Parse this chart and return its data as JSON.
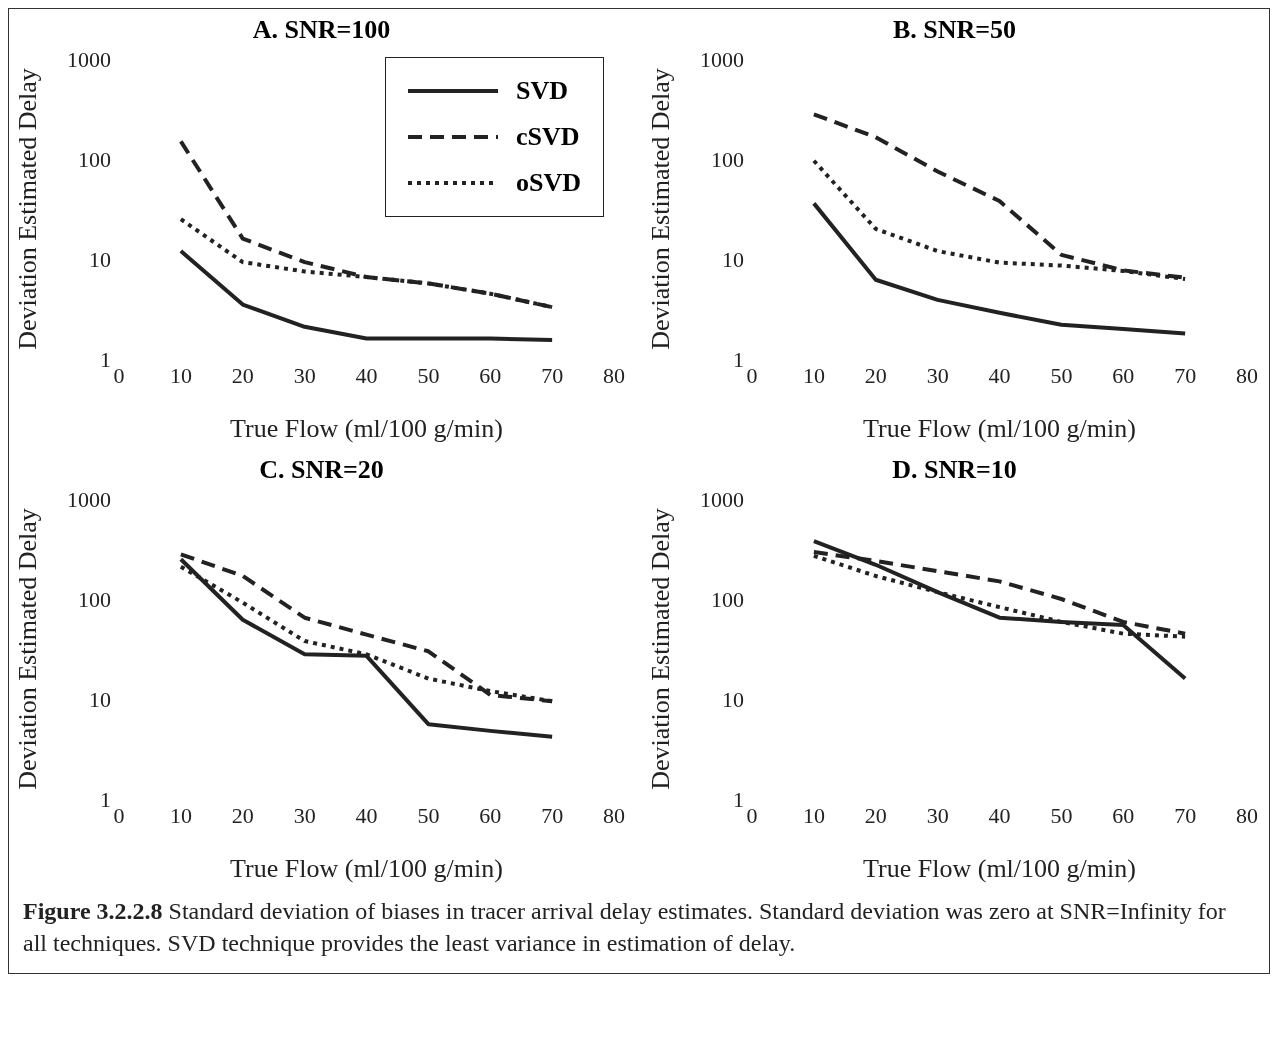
{
  "chart_data": [
    {
      "type": "line",
      "title": "A. SNR=100",
      "xlabel": "True Flow (ml/100 g/min)",
      "ylabel": "Deviation Estimated Delay",
      "x": [
        10,
        20,
        30,
        40,
        50,
        60,
        70
      ],
      "xlim": [
        0,
        80
      ],
      "xticks": [
        0,
        10,
        20,
        30,
        40,
        50,
        60,
        70,
        80
      ],
      "ylim": [
        1,
        1000
      ],
      "yticks": [
        1,
        10,
        100,
        1000
      ],
      "log": "y",
      "grid": false,
      "legend": "top right",
      "series": [
        {
          "name": "SVD",
          "color": "#222222",
          "line_style": "solid",
          "values": [
            12,
            3.5,
            2.1,
            1.6,
            1.6,
            1.6,
            1.55
          ]
        },
        {
          "name": "cSVD",
          "color": "#222222",
          "line_style": "dashed",
          "values": [
            150,
            16,
            9.3,
            6.6,
            5.7,
            4.5,
            3.3
          ]
        },
        {
          "name": "oSVD",
          "color": "#222222",
          "line_style": "dotted",
          "values": [
            25,
            9.3,
            7.5,
            6.6,
            5.7,
            4.5,
            3.3
          ]
        }
      ]
    },
    {
      "type": "line",
      "title": "B. SNR=50",
      "xlabel": "True Flow (ml/100 g/min)",
      "ylabel": "Deviation Estimated Delay",
      "x": [
        10,
        20,
        30,
        40,
        50,
        60,
        70
      ],
      "xlim": [
        0,
        80
      ],
      "xticks": [
        0,
        10,
        20,
        30,
        40,
        50,
        60,
        70,
        80
      ],
      "ylim": [
        1,
        1000
      ],
      "yticks": [
        1,
        10,
        100,
        1000
      ],
      "log": "y",
      "grid": false,
      "series": [
        {
          "color": "#222222",
          "line_style": "solid",
          "values": [
            36,
            6.2,
            3.9,
            2.9,
            2.2,
            2.0,
            1.8
          ]
        },
        {
          "color": "#222222",
          "line_style": "dashed",
          "values": [
            280,
            165,
            75,
            38,
            11,
            7.7,
            6.5
          ]
        },
        {
          "color": "#222222",
          "line_style": "dotted",
          "values": [
            96,
            20,
            12,
            9.2,
            8.6,
            7.6,
            6.3
          ]
        }
      ]
    },
    {
      "type": "line",
      "title": "C. SNR=20",
      "xlabel": "True Flow (ml/100 g/min)",
      "ylabel": "Deviation Estimated Delay",
      "x": [
        10,
        20,
        30,
        40,
        50,
        60,
        70
      ],
      "xlim": [
        0,
        80
      ],
      "xticks": [
        0,
        10,
        20,
        30,
        40,
        50,
        60,
        70,
        80
      ],
      "ylim": [
        1,
        1000
      ],
      "yticks": [
        1,
        10,
        100,
        1000
      ],
      "log": "y",
      "grid": false,
      "series": [
        {
          "color": "#222222",
          "line_style": "solid",
          "values": [
            250,
            62,
            28,
            27,
            5.6,
            4.8,
            4.2
          ]
        },
        {
          "color": "#222222",
          "line_style": "dashed",
          "values": [
            280,
            170,
            65,
            44,
            30,
            11,
            9.5
          ]
        },
        {
          "color": "#222222",
          "line_style": "dotted",
          "values": [
            210,
            92,
            38,
            28,
            16,
            12,
            9.5
          ]
        }
      ]
    },
    {
      "type": "line",
      "title": "D. SNR=10",
      "xlabel": "True Flow (ml/100 g/min)",
      "ylabel": "Deviation Estimated Delay",
      "x": [
        10,
        20,
        30,
        40,
        50,
        60,
        70
      ],
      "xlim": [
        0,
        80
      ],
      "xticks": [
        0,
        10,
        20,
        30,
        40,
        50,
        60,
        70,
        80
      ],
      "ylim": [
        1,
        1000
      ],
      "yticks": [
        1,
        10,
        100,
        1000
      ],
      "log": "y",
      "grid": false,
      "annotations": [
        "Figure 3.2.2.8 Standard deviation of biases in tracer arrival delay estimates. Standard deviation was zero at SNR=Infinity for all techniques. SVD technique provides the least variance in estimation of delay."
      ],
      "series": [
        {
          "color": "#222222",
          "line_style": "solid",
          "values": [
            380,
            220,
            117,
            65,
            59,
            55,
            16
          ]
        },
        {
          "color": "#222222",
          "line_style": "dashed",
          "values": [
            295,
            240,
            190,
            150,
            100,
            59,
            45
          ]
        },
        {
          "color": "#222222",
          "line_style": "dotted",
          "values": [
            270,
            170,
            117,
            83,
            59,
            45,
            42
          ]
        }
      ]
    }
  ]
}
